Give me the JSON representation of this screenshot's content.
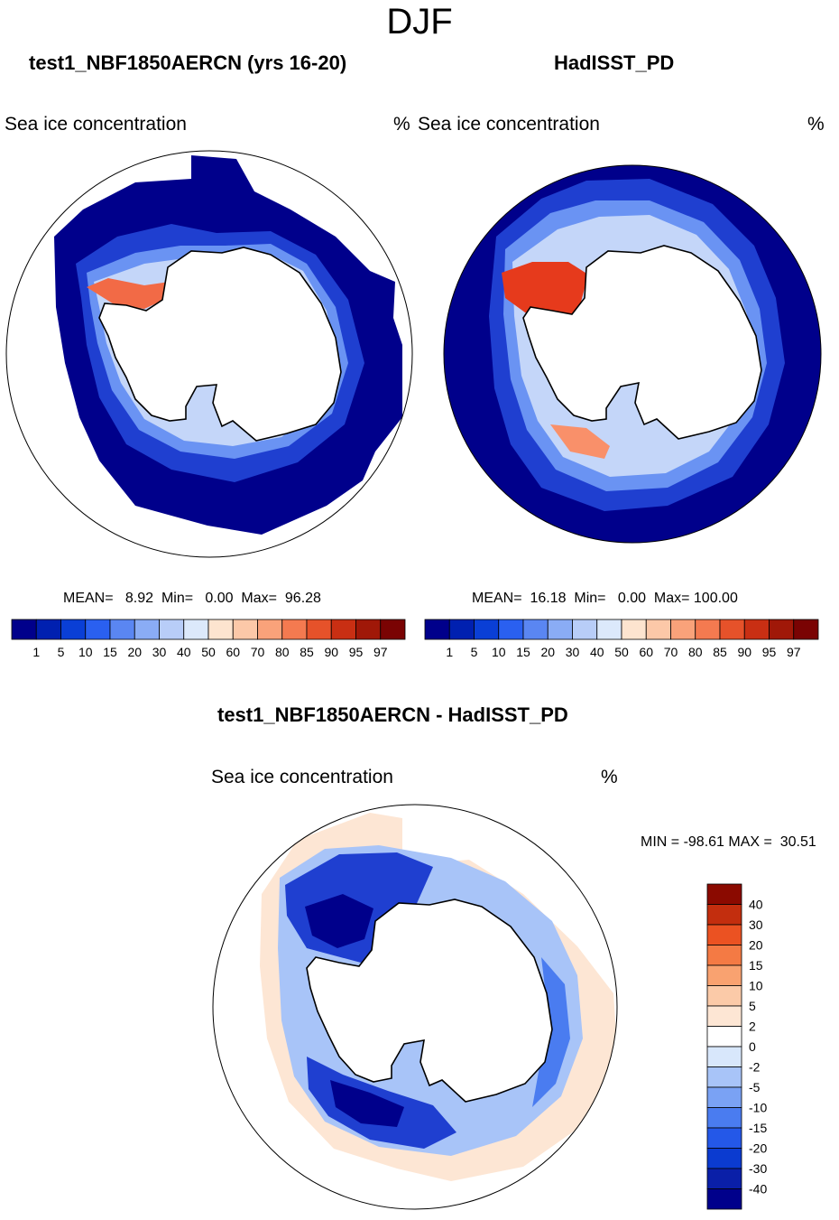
{
  "figure": {
    "season": "DJF"
  },
  "panels": [
    {
      "title": "test1_NBF1850AERCN (yrs 16-20)",
      "variable": "Sea ice concentration",
      "units": "%",
      "stats": "MEAN=   8.92  Min=   0.00  Max=  96.28"
    },
    {
      "title": "HadISST_PD",
      "variable": "Sea ice concentration",
      "units": "%",
      "stats": "MEAN=  16.18  Min=   0.00  Max= 100.00"
    }
  ],
  "difference": {
    "title": "test1_NBF1850AERCN - HadISST_PD",
    "variable": "Sea ice concentration",
    "units": "%",
    "minmax": "MIN = -98.61 MAX =  30.51"
  },
  "colors": {
    "abs_scale": [
      "#00008b",
      "#0020b0",
      "#0a3fd6",
      "#2a60f0",
      "#5a86f2",
      "#8aacf5",
      "#b8cdf8",
      "#dce9fb",
      "#fde4cf",
      "#fcc8a8",
      "#f9a27a",
      "#f47a50",
      "#e6522a",
      "#c92f13",
      "#a01808",
      "#7a0303"
    ],
    "diff_scale": [
      "#00008b",
      "#0a1fa8",
      "#0b3bd0",
      "#2458e8",
      "#4a7cf0",
      "#7aa2f4",
      "#a8c4f8",
      "#d8e7fb",
      "#ffffff",
      "#fde6d4",
      "#fbcaa8",
      "#f9a270",
      "#f47a44",
      "#eb5222",
      "#c32e0e",
      "#8b0a00"
    ],
    "land": "#ffffff",
    "coast": "#000000"
  },
  "chart_data": [
    {
      "type": "heatmap",
      "title": "test1_NBF1850AERCN (yrs 16-20)",
      "projection": "south polar stereographic",
      "variable": "Sea ice concentration",
      "units": "%",
      "mean": 8.92,
      "min": 0.0,
      "max": 96.28,
      "colorbar_levels": [
        1,
        5,
        10,
        15,
        20,
        30,
        40,
        50,
        60,
        70,
        80,
        85,
        90,
        95,
        97
      ]
    },
    {
      "type": "heatmap",
      "title": "HadISST_PD",
      "projection": "south polar stereographic",
      "variable": "Sea ice concentration",
      "units": "%",
      "mean": 16.18,
      "min": 0.0,
      "max": 100.0,
      "colorbar_levels": [
        1,
        5,
        10,
        15,
        20,
        30,
        40,
        50,
        60,
        70,
        80,
        85,
        90,
        95,
        97
      ]
    },
    {
      "type": "heatmap",
      "title": "test1_NBF1850AERCN - HadISST_PD",
      "projection": "south polar stereographic",
      "variable": "Sea ice concentration",
      "units": "%",
      "min": -98.61,
      "max": 30.51,
      "colorbar_levels": [
        40,
        30,
        20,
        15,
        10,
        5,
        2,
        0,
        -2,
        -5,
        -10,
        -15,
        -20,
        -30,
        -40
      ]
    }
  ]
}
